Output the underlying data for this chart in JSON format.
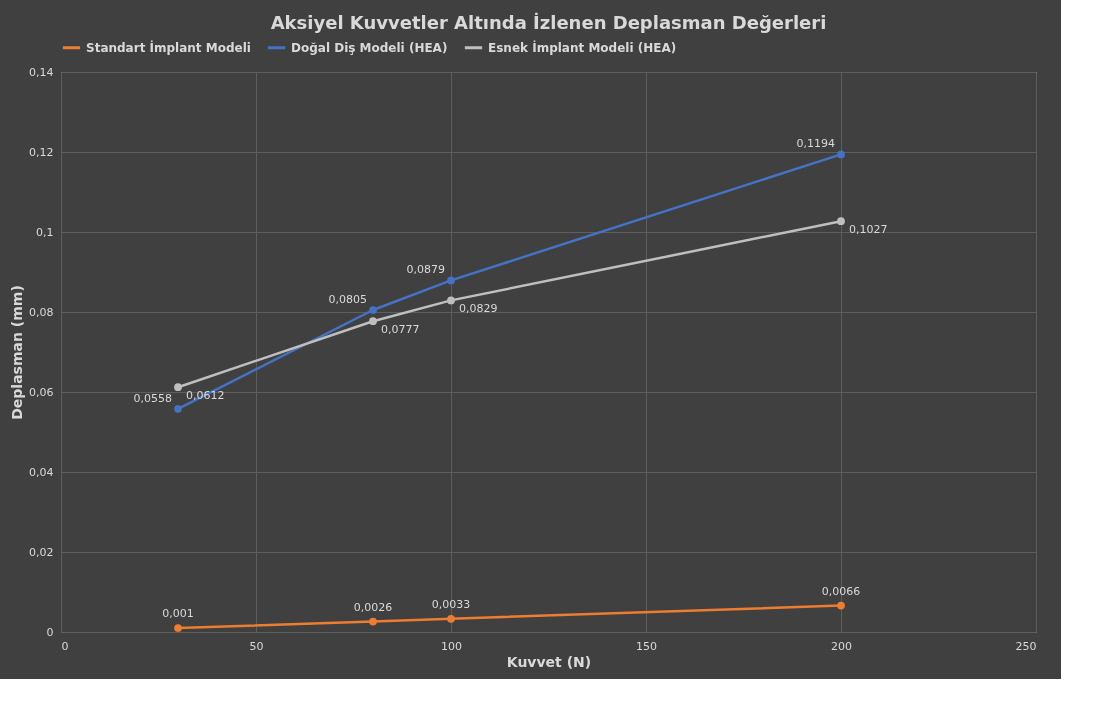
{
  "chart_data": {
    "type": "line",
    "title": "Aksiyel Kuvvetler Altında İzlenen Deplasman Değerleri",
    "xlabel": "Kuvvet (N)",
    "ylabel": "Deplasman (mm)",
    "x": [
      30,
      80,
      100,
      200
    ],
    "series": [
      {
        "name": "Standart İmplant Modeli",
        "color": "#ed7d31",
        "values": [
          0.001,
          0.0026,
          0.0033,
          0.0066
        ],
        "value_labels": [
          "0,001",
          "0,0026",
          "0,0033",
          "0,0066"
        ]
      },
      {
        "name": "Doğal Diş Modeli (HEA)",
        "color": "#4472c4",
        "values": [
          0.0558,
          0.0805,
          0.0879,
          0.1194
        ],
        "value_labels": [
          "0,0558",
          "0,0805",
          "0,0879",
          "0,1194"
        ]
      },
      {
        "name": "Esnek İmplant Modeli (HEA)",
        "color": "#bfbfbf",
        "values": [
          0.0612,
          0.0777,
          0.0829,
          0.1027
        ],
        "value_labels": [
          "0,0612",
          "0,0777",
          "0,0829",
          "0,1027"
        ]
      }
    ],
    "xlim": [
      0,
      250
    ],
    "xticks": [
      0,
      50,
      100,
      150,
      200,
      250
    ],
    "ylim": [
      0,
      0.14
    ],
    "yticks": [
      0,
      {
        "value": 0.02,
        "label": "0,02"
      },
      {
        "value": 0.04,
        "label": "0,04"
      },
      {
        "value": 0.06,
        "label": "0,06"
      },
      {
        "value": 0.08,
        "label": "0,08"
      },
      {
        "value": 0.1,
        "label": "0,1"
      },
      {
        "value": 0.12,
        "label": "0,12"
      },
      {
        "value": 0.14,
        "label": "0,14"
      }
    ],
    "grid": true,
    "legend": "top",
    "marker": "circle",
    "line_style": "solid"
  }
}
